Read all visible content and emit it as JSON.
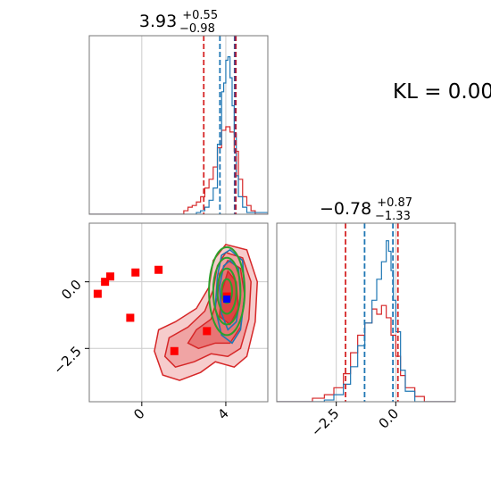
{
  "kl_text": "KL = 0.00",
  "colors": {
    "red": "#d62728",
    "blue": "#1f77b4",
    "green": "#2ca02c",
    "marker_red": "#ff0000",
    "marker_blue": "#0000ff",
    "grid": "#cccccc",
    "axes": "#777777",
    "fill_red": "#f08080"
  },
  "chart_data": [
    {
      "type": "histogram",
      "panel": "marginal-param-1",
      "title": {
        "value": "3.93",
        "upper": "+0.55",
        "lower": "−0.98"
      },
      "xlim": [
        -2.5,
        6.0
      ],
      "ylim": [
        0,
        1
      ],
      "grid_x": [
        0,
        4
      ],
      "series": [
        {
          "color": "red",
          "bin_edges": [
            -2.5,
            2.0,
            2.2,
            2.4,
            2.6,
            2.8,
            3.0,
            3.2,
            3.4,
            3.6,
            3.8,
            4.0,
            4.2,
            4.4,
            4.6,
            4.8,
            5.0,
            5.2,
            5.4,
            6.0
          ],
          "counts": [
            0.0,
            0.02,
            0.04,
            0.05,
            0.07,
            0.1,
            0.15,
            0.2,
            0.27,
            0.38,
            0.48,
            0.5,
            0.47,
            0.36,
            0.2,
            0.1,
            0.05,
            0.02,
            0.0
          ]
        },
        {
          "color": "blue",
          "bin_edges": [
            -2.5,
            2.6,
            2.8,
            3.0,
            3.2,
            3.4,
            3.6,
            3.8,
            3.9,
            4.0,
            4.1,
            4.2,
            4.3,
            4.4,
            4.5,
            4.6,
            4.8,
            5.0,
            6.0
          ],
          "counts": [
            0.0,
            0.01,
            0.02,
            0.04,
            0.08,
            0.15,
            0.4,
            0.7,
            0.75,
            0.88,
            0.9,
            0.78,
            0.62,
            0.46,
            0.22,
            0.1,
            0.04,
            0.01
          ]
        }
      ],
      "quantiles": [
        {
          "color": "red",
          "values": [
            2.95,
            4.48
          ]
        },
        {
          "color": "blue",
          "values": [
            3.72,
            4.42
          ]
        },
        {
          "color": "purple",
          "values": [
            4.45
          ]
        }
      ]
    },
    {
      "type": "histogram",
      "panel": "marginal-param-2",
      "title": {
        "value": "−0.78",
        "upper": "+0.87",
        "lower": "−1.33"
      },
      "xlim": [
        -5.0,
        2.5
      ],
      "ylim": [
        0,
        1
      ],
      "grid_x": [
        -2.5,
        0.0
      ],
      "xticks": [
        "−2.5",
        "0.0"
      ],
      "xtick_values": [
        -2.5,
        0.0
      ],
      "series": [
        {
          "color": "red",
          "bin_edges": [
            -5.0,
            -3.5,
            -3.0,
            -2.6,
            -2.2,
            -1.9,
            -1.6,
            -1.3,
            -1.0,
            -0.8,
            -0.6,
            -0.4,
            -0.2,
            0.0,
            0.2,
            0.4,
            0.8,
            1.2,
            2.5
          ],
          "counts": [
            0.0,
            0.02,
            0.04,
            0.08,
            0.16,
            0.28,
            0.38,
            0.45,
            0.53,
            0.5,
            0.55,
            0.48,
            0.38,
            0.26,
            0.15,
            0.08,
            0.03,
            0.0
          ]
        },
        {
          "color": "blue",
          "bin_edges": [
            -5.0,
            -3.0,
            -2.6,
            -2.2,
            -1.9,
            -1.6,
            -1.3,
            -1.0,
            -0.8,
            -0.6,
            -0.4,
            -0.3,
            -0.2,
            -0.1,
            0.0,
            0.2,
            0.4,
            0.8,
            2.5
          ],
          "counts": [
            0.0,
            0.01,
            0.04,
            0.1,
            0.2,
            0.32,
            0.45,
            0.58,
            0.7,
            0.8,
            0.92,
            0.86,
            0.75,
            0.58,
            0.4,
            0.18,
            0.06,
            0.0
          ]
        }
      ],
      "quantiles": [
        {
          "color": "red",
          "values": [
            -2.11,
            0.09
          ]
        },
        {
          "color": "blue",
          "values": [
            -1.31,
            -0.12
          ]
        }
      ]
    },
    {
      "type": "scatter-contour",
      "panel": "joint",
      "xlim": [
        -2.5,
        6.0
      ],
      "ylim": [
        -4.5,
        2.2
      ],
      "grid_x": [
        0,
        4
      ],
      "grid_y": [
        0.0,
        -2.5
      ],
      "xticks": [
        "0",
        "4"
      ],
      "xtick_values": [
        0,
        4
      ],
      "yticks": [
        "0.0",
        "−2.5"
      ],
      "ytick_values": [
        0.0,
        -2.5
      ],
      "red_contours": [
        {
          "level": 1,
          "points": [
            [
              4.0,
              1.4
            ],
            [
              5.0,
              1.2
            ],
            [
              5.5,
              0.0
            ],
            [
              5.4,
              -1.5
            ],
            [
              5.0,
              -2.8
            ],
            [
              4.4,
              -3.2
            ],
            [
              3.5,
              -3.0
            ],
            [
              2.8,
              -3.4
            ],
            [
              1.8,
              -3.7
            ],
            [
              1.0,
              -3.5
            ],
            [
              0.6,
              -2.6
            ],
            [
              0.8,
              -1.8
            ],
            [
              1.6,
              -1.5
            ],
            [
              2.6,
              -1.0
            ],
            [
              3.2,
              -0.2
            ],
            [
              3.4,
              0.8
            ]
          ]
        },
        {
          "level": 2,
          "points": [
            [
              4.0,
              1.1
            ],
            [
              4.8,
              0.9
            ],
            [
              5.2,
              0.0
            ],
            [
              5.1,
              -1.4
            ],
            [
              4.7,
              -2.5
            ],
            [
              4.1,
              -2.8
            ],
            [
              3.3,
              -2.7
            ],
            [
              2.5,
              -3.0
            ],
            [
              1.6,
              -3.2
            ],
            [
              1.1,
              -2.8
            ],
            [
              1.3,
              -2.1
            ],
            [
              2.2,
              -1.7
            ],
            [
              3.0,
              -1.1
            ],
            [
              3.4,
              -0.3
            ],
            [
              3.6,
              0.6
            ]
          ]
        },
        {
          "level": 3,
          "points": [
            [
              4.1,
              0.8
            ],
            [
              4.7,
              0.5
            ],
            [
              4.9,
              -0.5
            ],
            [
              4.7,
              -1.7
            ],
            [
              4.2,
              -2.3
            ],
            [
              3.5,
              -2.3
            ],
            [
              2.7,
              -2.5
            ],
            [
              2.2,
              -2.3
            ],
            [
              2.6,
              -1.8
            ],
            [
              3.3,
              -1.4
            ],
            [
              3.6,
              -0.6
            ],
            [
              3.7,
              0.3
            ]
          ]
        },
        {
          "level": 4,
          "points": [
            [
              4.1,
              0.4
            ],
            [
              4.5,
              0.0
            ],
            [
              4.6,
              -1.0
            ],
            [
              4.2,
              -1.6
            ],
            [
              3.7,
              -1.3
            ],
            [
              3.8,
              -0.4
            ]
          ]
        }
      ],
      "blue_contours": [
        {
          "level": 1,
          "points": [
            [
              4.2,
              1.2
            ],
            [
              4.8,
              0.8
            ],
            [
              4.9,
              -0.5
            ],
            [
              4.7,
              -1.8
            ],
            [
              4.3,
              -2.3
            ],
            [
              3.8,
              -2.0
            ],
            [
              3.5,
              -1.0
            ],
            [
              3.6,
              0.2
            ],
            [
              3.8,
              1.0
            ]
          ]
        },
        {
          "level": 2,
          "points": [
            [
              4.2,
              0.8
            ],
            [
              4.6,
              0.5
            ],
            [
              4.7,
              -0.5
            ],
            [
              4.5,
              -1.5
            ],
            [
              4.1,
              -1.8
            ],
            [
              3.8,
              -1.2
            ],
            [
              3.7,
              -0.2
            ],
            [
              3.9,
              0.6
            ]
          ]
        }
      ],
      "green_contours": [
        {
          "cx": 4.05,
          "cy": -0.35,
          "rx": 0.85,
          "ry": 1.65
        },
        {
          "cx": 4.05,
          "cy": -0.35,
          "rx": 0.65,
          "ry": 1.25
        },
        {
          "cx": 4.05,
          "cy": -0.35,
          "rx": 0.45,
          "ry": 0.85
        },
        {
          "cx": 4.05,
          "cy": -0.35,
          "rx": 0.25,
          "ry": 0.45
        }
      ],
      "red_markers": [
        [
          -2.1,
          -0.45
        ],
        [
          -1.75,
          0.0
        ],
        [
          -1.5,
          0.2
        ],
        [
          -0.55,
          -1.35
        ],
        [
          -0.3,
          0.35
        ],
        [
          0.8,
          0.45
        ],
        [
          1.55,
          -2.6
        ],
        [
          3.1,
          -1.85
        ],
        [
          4.05,
          -0.55
        ]
      ],
      "blue_markers": [
        [
          4.05,
          -0.65
        ]
      ]
    }
  ]
}
